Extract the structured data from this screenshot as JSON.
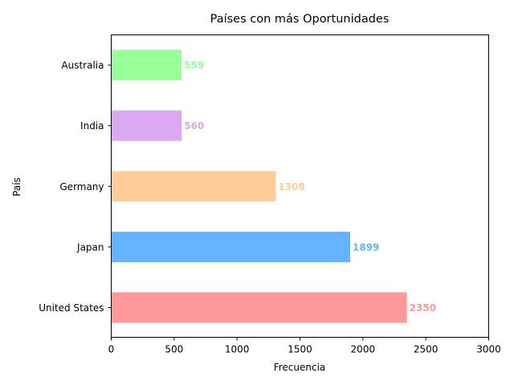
{
  "chart_data": {
    "type": "bar",
    "orientation": "horizontal",
    "title": "Países con más Oportunidades",
    "xlabel": "Frecuencia",
    "ylabel": "País",
    "categories": [
      "United States",
      "Japan",
      "Germany",
      "India",
      "Australia"
    ],
    "values": [
      2350,
      1899,
      1308,
      560,
      559
    ],
    "colors": [
      "#ff9999",
      "#66b3ff",
      "#ffcc99",
      "#dda8f2",
      "#99ff99"
    ],
    "xlim": [
      0,
      3000
    ],
    "xticks": [
      0,
      500,
      1000,
      1500,
      2000,
      2500,
      3000
    ],
    "grid": false,
    "legend": "none"
  }
}
